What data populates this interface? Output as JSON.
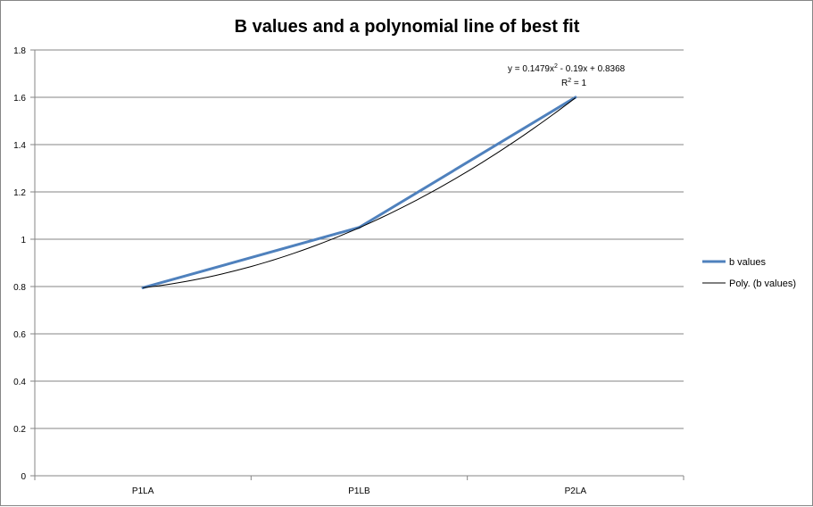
{
  "chart_data": {
    "type": "line",
    "title": "B values and a polynomial line of best fit",
    "xlabel": "",
    "ylabel": "",
    "categories": [
      "P1LA",
      "P1LB",
      "P2LA"
    ],
    "ylim": [
      0,
      1.8
    ],
    "yticks": [
      "0",
      "0.2",
      "0.4",
      "0.6",
      "0.8",
      "1",
      "1.2",
      "1.4",
      "1.6",
      "1.8"
    ],
    "grid": true,
    "legend_position": "right",
    "series": [
      {
        "name": "b values",
        "values": [
          0.795,
          1.05,
          1.6
        ],
        "color": "#4F81BD"
      }
    ],
    "trendline": {
      "name": "Poly. (b values)",
      "type": "polynomial",
      "order": 2,
      "coefficients": [
        0.1479,
        -0.19,
        0.8368
      ],
      "color": "#000000",
      "equation_label": "y = 0.1479x",
      "equation_sup": "2",
      "equation_rest": " - 0.19x + 0.8368",
      "r2_label_main": "R",
      "r2_label_sup": "2",
      "r2_label_rest": " = 1"
    }
  }
}
